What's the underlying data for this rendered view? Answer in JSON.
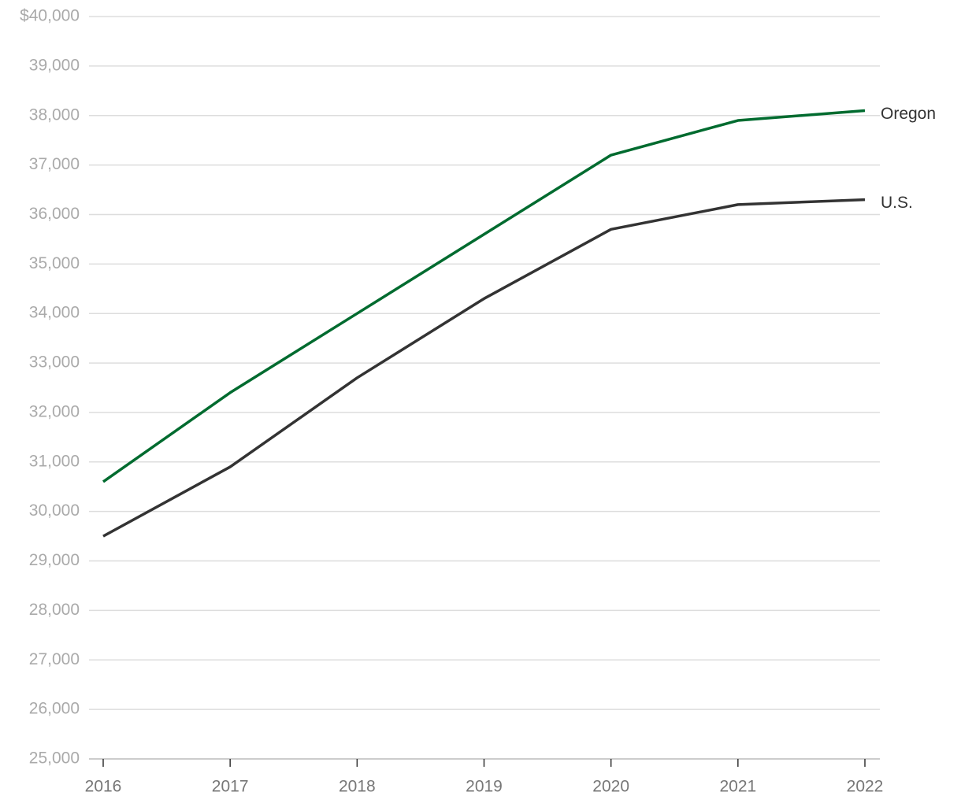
{
  "chart_data": {
    "type": "line",
    "x": [
      2016,
      2017,
      2018,
      2019,
      2020,
      2021,
      2022
    ],
    "xlim": [
      2016,
      2022
    ],
    "xticks": [
      2016,
      2017,
      2018,
      2019,
      2020,
      2021,
      2022
    ],
    "ylim": [
      25000,
      40000
    ],
    "yticks": [
      {
        "value": 25000,
        "label": "25,000"
      },
      {
        "value": 26000,
        "label": "26,000"
      },
      {
        "value": 27000,
        "label": "27,000"
      },
      {
        "value": 28000,
        "label": "28,000"
      },
      {
        "value": 29000,
        "label": "29,000"
      },
      {
        "value": 30000,
        "label": "30,000"
      },
      {
        "value": 31000,
        "label": "31,000"
      },
      {
        "value": 32000,
        "label": "32,000"
      },
      {
        "value": 33000,
        "label": "33,000"
      },
      {
        "value": 34000,
        "label": "34,000"
      },
      {
        "value": 35000,
        "label": "35,000"
      },
      {
        "value": 36000,
        "label": "36,000"
      },
      {
        "value": 37000,
        "label": "37,000"
      },
      {
        "value": 38000,
        "label": "38,000"
      },
      {
        "value": 39000,
        "label": "39,000"
      },
      {
        "value": 40000,
        "label": "$40,000"
      }
    ],
    "grid": true,
    "series": [
      {
        "name": "Oregon",
        "color": "#006b2f",
        "values": [
          30600,
          32400,
          34000,
          35600,
          37200,
          37900,
          38100
        ]
      },
      {
        "name": "U.S.",
        "color": "#333333",
        "values": [
          29500,
          30900,
          32700,
          34300,
          35700,
          36200,
          36300
        ]
      }
    ]
  }
}
